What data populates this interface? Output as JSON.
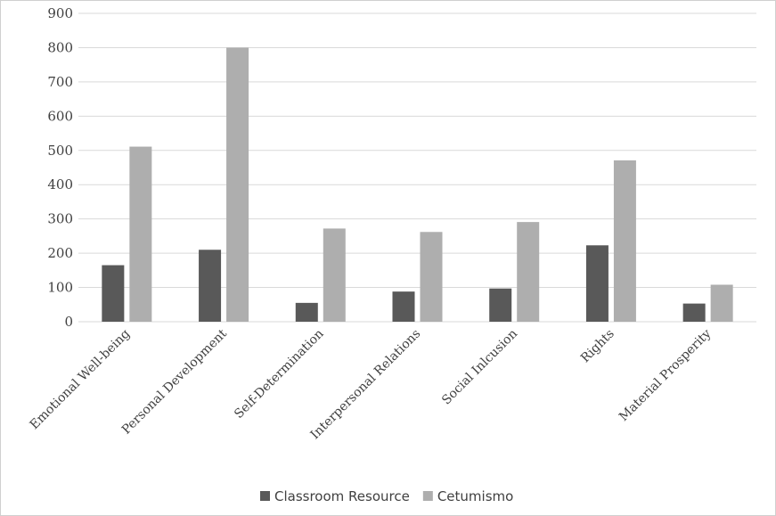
{
  "chart_data": {
    "type": "bar",
    "categories": [
      "Emotional Well-being",
      "Personal Development",
      "Self-Determination",
      "Interpersonal Relations",
      "Social Inlcusion",
      "Rights",
      "Material Prosperity"
    ],
    "series": [
      {
        "name": "Classroom Resource",
        "color": "#595959",
        "values": [
          165,
          210,
          55,
          88,
          97,
          223,
          53
        ]
      },
      {
        "name": "Cetumismo",
        "color": "#aeaeae",
        "values": [
          511,
          800,
          272,
          262,
          291,
          471,
          108
        ]
      }
    ],
    "ylim": [
      0,
      900
    ],
    "yticks": [
      0,
      100,
      200,
      300,
      400,
      500,
      600,
      700,
      800,
      900
    ],
    "grid": true,
    "gridColor": "#d9d9d9",
    "legend": "bottom-center"
  }
}
